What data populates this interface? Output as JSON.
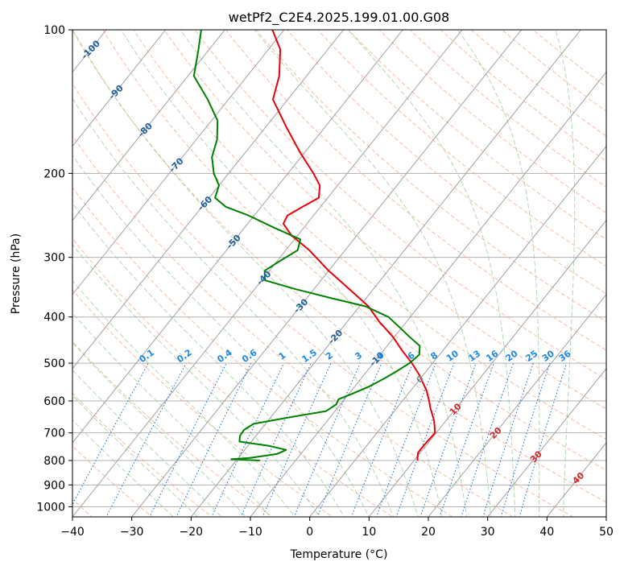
{
  "chart_data": {
    "type": "line",
    "subtype": "skew-t log-p diagram",
    "title": "wetPf2_C2E4.2025.199.01.00.G08",
    "xlabel": "Temperature (°C)",
    "ylabel": "Pressure (hPa)",
    "xlim": [
      -40,
      50
    ],
    "ylim": [
      1050,
      100
    ],
    "yscale": "log",
    "x_ticks": [
      -40,
      -30,
      -20,
      -10,
      0,
      10,
      20,
      30,
      40,
      50
    ],
    "y_ticks": [
      100,
      200,
      300,
      400,
      500,
      600,
      700,
      800,
      900,
      1000
    ],
    "grid": true,
    "colors": {
      "temperature": "#e8000b",
      "dewpoint": "#008000",
      "isotherm": "#a0a0a0",
      "dry_adiabat": "#f4a582",
      "moist_adiabat": "#8fc98f",
      "mixing_ratio": "#1f77d4",
      "mixing_ratio_label": "#1e88e5",
      "isotherm_label": "#1f5f9f",
      "adiabat_label": "#d62728",
      "zero_label": "#808080",
      "background_curves": "#d2b48c"
    },
    "series": [
      {
        "name": "",
        "role": "temperature",
        "color": "#e8000b",
        "points": [
          {
            "p": 800,
            "t": 10.6
          },
          {
            "p": 790,
            "t": 10.2
          },
          {
            "p": 770,
            "t": 9.6
          },
          {
            "p": 740,
            "t": 9.6
          },
          {
            "p": 700,
            "t": 9.8
          },
          {
            "p": 660,
            "t": 8.0
          },
          {
            "p": 620,
            "t": 5.6
          },
          {
            "p": 600,
            "t": 4.5
          },
          {
            "p": 570,
            "t": 2.6
          },
          {
            "p": 530,
            "t": -0.6
          },
          {
            "p": 500,
            "t": -3.5
          },
          {
            "p": 470,
            "t": -6.9
          },
          {
            "p": 440,
            "t": -10.3
          },
          {
            "p": 410,
            "t": -14.5
          },
          {
            "p": 380,
            "t": -18.5
          },
          {
            "p": 350,
            "t": -24.0
          },
          {
            "p": 320,
            "t": -30.0
          },
          {
            "p": 290,
            "t": -36.0
          },
          {
            "p": 270,
            "t": -41.0
          },
          {
            "p": 255,
            "t": -44.0
          },
          {
            "p": 245,
            "t": -44.4
          },
          {
            "p": 235,
            "t": -43.0
          },
          {
            "p": 225,
            "t": -41.5
          },
          {
            "p": 212,
            "t": -43.0
          },
          {
            "p": 200,
            "t": -45.7
          },
          {
            "p": 180,
            "t": -51.0
          },
          {
            "p": 160,
            "t": -56.5
          },
          {
            "p": 140,
            "t": -62.5
          },
          {
            "p": 125,
            "t": -64.6
          },
          {
            "p": 110,
            "t": -68.0
          },
          {
            "p": 100,
            "t": -72.0
          }
        ]
      },
      {
        "name": "",
        "role": "dewpoint",
        "color": "#008000",
        "points": [
          {
            "p": 800,
            "t": -16.0
          },
          {
            "p": 795,
            "t": -21.0
          },
          {
            "p": 790,
            "t": -18.0
          },
          {
            "p": 775,
            "t": -14.0
          },
          {
            "p": 760,
            "t": -13.0
          },
          {
            "p": 745,
            "t": -16.5
          },
          {
            "p": 730,
            "t": -22.0
          },
          {
            "p": 710,
            "t": -22.7
          },
          {
            "p": 690,
            "t": -22.8
          },
          {
            "p": 670,
            "t": -22.0
          },
          {
            "p": 650,
            "t": -17.0
          },
          {
            "p": 630,
            "t": -11.5
          },
          {
            "p": 610,
            "t": -10.7
          },
          {
            "p": 595,
            "t": -11.0
          },
          {
            "p": 580,
            "t": -9.5
          },
          {
            "p": 560,
            "t": -7.6
          },
          {
            "p": 540,
            "t": -6.2
          },
          {
            "p": 520,
            "t": -5.0
          },
          {
            "p": 500,
            "t": -3.9
          },
          {
            "p": 480,
            "t": -3.4
          },
          {
            "p": 460,
            "t": -4.5
          },
          {
            "p": 440,
            "t": -7.5
          },
          {
            "p": 420,
            "t": -10.5
          },
          {
            "p": 400,
            "t": -13.7
          },
          {
            "p": 380,
            "t": -19.0
          },
          {
            "p": 365,
            "t": -26.0
          },
          {
            "p": 350,
            "t": -33.0
          },
          {
            "p": 335,
            "t": -39.5
          },
          {
            "p": 320,
            "t": -40.8
          },
          {
            "p": 305,
            "t": -39.5
          },
          {
            "p": 290,
            "t": -38.0
          },
          {
            "p": 275,
            "t": -39.0
          },
          {
            "p": 260,
            "t": -45.0
          },
          {
            "p": 245,
            "t": -51.0
          },
          {
            "p": 235,
            "t": -56.0
          },
          {
            "p": 225,
            "t": -59.0
          },
          {
            "p": 212,
            "t": -60.0
          },
          {
            "p": 200,
            "t": -62.5
          },
          {
            "p": 185,
            "t": -65.0
          },
          {
            "p": 170,
            "t": -66.5
          },
          {
            "p": 155,
            "t": -69.0
          },
          {
            "p": 140,
            "t": -73.5
          },
          {
            "p": 125,
            "t": -79.0
          },
          {
            "p": 110,
            "t": -81.8
          },
          {
            "p": 100,
            "t": -84.0
          }
        ]
      }
    ],
    "isotherms": [
      -140,
      -130,
      -120,
      -110,
      -100,
      -90,
      -80,
      -70,
      -60,
      -50,
      -40,
      -30,
      -20,
      -10,
      0,
      10,
      20,
      30,
      40,
      50
    ],
    "isotherm_labels": [
      {
        "t": -100,
        "p": 110,
        "text": "-100"
      },
      {
        "t": -90,
        "p": 135,
        "text": "-90"
      },
      {
        "t": -80,
        "p": 162,
        "text": "-80"
      },
      {
        "t": -70,
        "p": 192,
        "text": "-70"
      },
      {
        "t": -60,
        "p": 231,
        "text": "-60"
      },
      {
        "t": -50,
        "p": 278,
        "text": "-50"
      },
      {
        "t": -40,
        "p": 331,
        "text": "-40"
      },
      {
        "t": -30,
        "p": 379,
        "text": "-30"
      },
      {
        "t": -20,
        "p": 440,
        "text": "-20"
      },
      {
        "t": -10,
        "p": 490,
        "text": "-10"
      },
      {
        "t": 0,
        "p": 540,
        "text": "0"
      },
      {
        "t": 10,
        "p": 624,
        "text": "10"
      },
      {
        "t": 20,
        "p": 700,
        "text": "20"
      },
      {
        "t": 30,
        "p": 785,
        "text": "30"
      },
      {
        "t": 40,
        "p": 870,
        "text": "40"
      }
    ],
    "mixing_ratios": [
      0.1,
      0.2,
      0.4,
      0.6,
      1,
      1.5,
      2,
      3,
      4,
      6,
      8,
      10,
      13,
      16,
      20,
      25,
      30,
      36
    ],
    "mixing_ratio_label_pressure": 500
  }
}
